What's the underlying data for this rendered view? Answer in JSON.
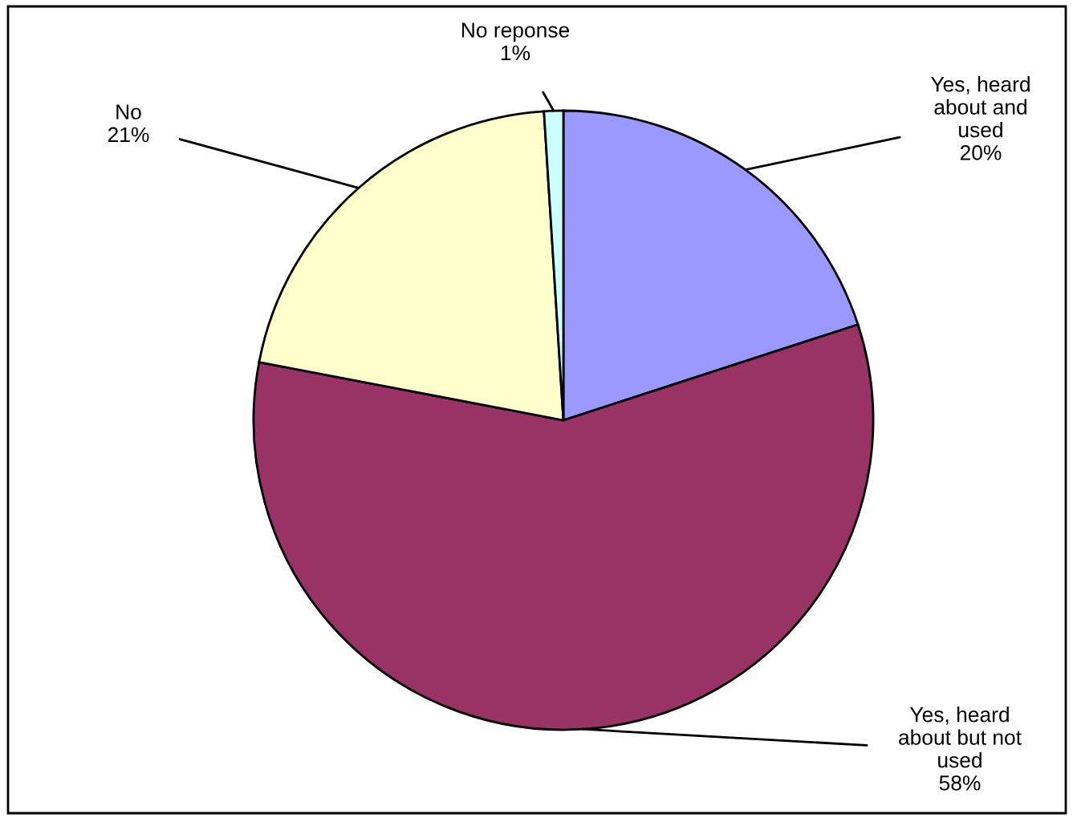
{
  "chart_data": {
    "type": "pie",
    "categories": [
      "Yes, heard\nabout and\nused",
      "Yes, heard\nabout but not\nused",
      "No",
      "No reponse"
    ],
    "values": [
      20,
      58,
      21,
      1
    ],
    "colors": [
      "#9999ff",
      "#993366",
      "#ffffcc",
      "#ccffff"
    ],
    "value_labels": [
      "20%",
      "58%",
      "21%",
      "1%"
    ],
    "legend": false
  }
}
